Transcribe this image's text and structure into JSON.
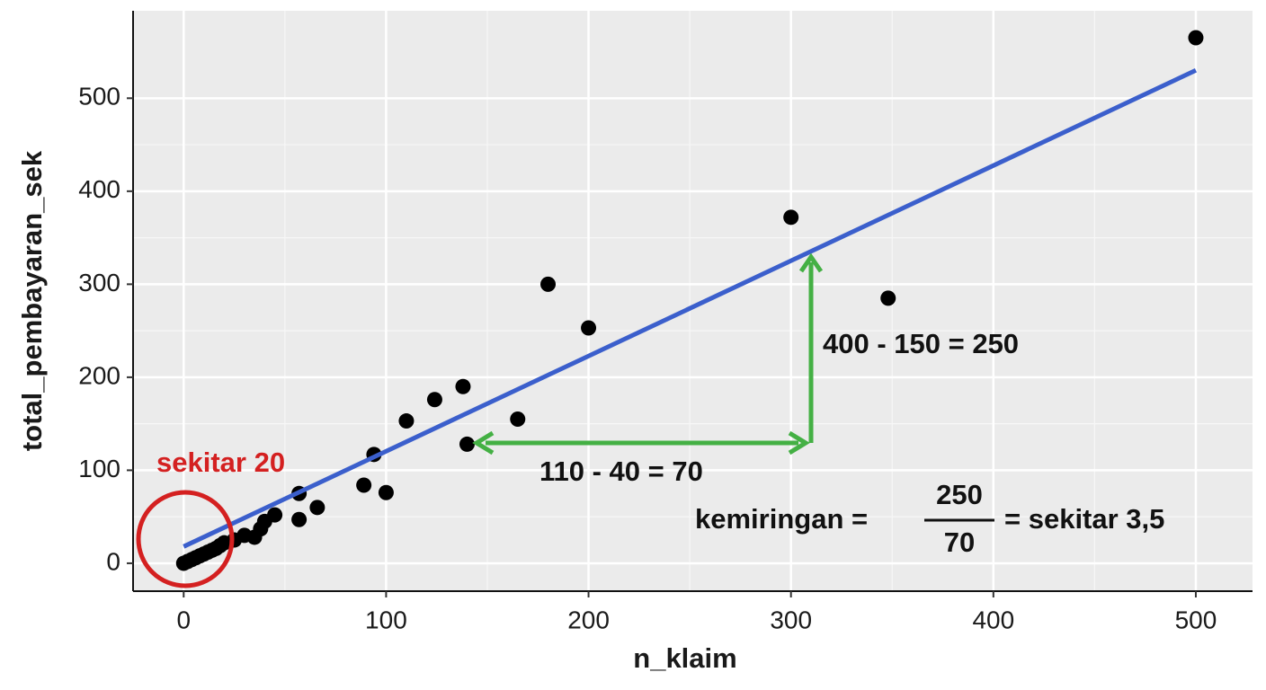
{
  "chart_data": {
    "type": "scatter",
    "x_label": "n_klaim",
    "y_label": "total_pembayaran_sek",
    "x": [
      0,
      2,
      4,
      6,
      8,
      10,
      12,
      14,
      16,
      18,
      20,
      25,
      30,
      35,
      38,
      40,
      45,
      57,
      57,
      66,
      89,
      94,
      100,
      110,
      124,
      138,
      140,
      165,
      180,
      200,
      300,
      348,
      500
    ],
    "y": [
      0,
      2,
      4,
      6,
      8,
      10,
      12,
      14,
      16,
      19,
      22,
      25,
      30,
      28,
      37,
      45,
      52,
      47,
      75,
      60,
      84,
      117,
      76,
      153,
      176,
      190,
      128,
      155,
      300,
      253,
      372,
      285,
      565
    ],
    "color": "#000000",
    "fit_line": {
      "x": [
        0,
        500
      ],
      "y": [
        18,
        530
      ],
      "color": "#3b5fcc"
    },
    "xlim": [
      -25,
      528
    ],
    "ylim": [
      -30,
      594
    ],
    "xticks": [
      0,
      100,
      200,
      300,
      400,
      500
    ],
    "yticks": [
      0,
      100,
      200,
      300,
      400,
      500
    ],
    "grid": true,
    "minor_grid": true,
    "annotations": [
      "sekitar 20",
      "400 - 150 = 250",
      "110 - 40 = 70",
      "kemiringan =",
      "250",
      "70",
      "= sekitar 3,5"
    ]
  }
}
